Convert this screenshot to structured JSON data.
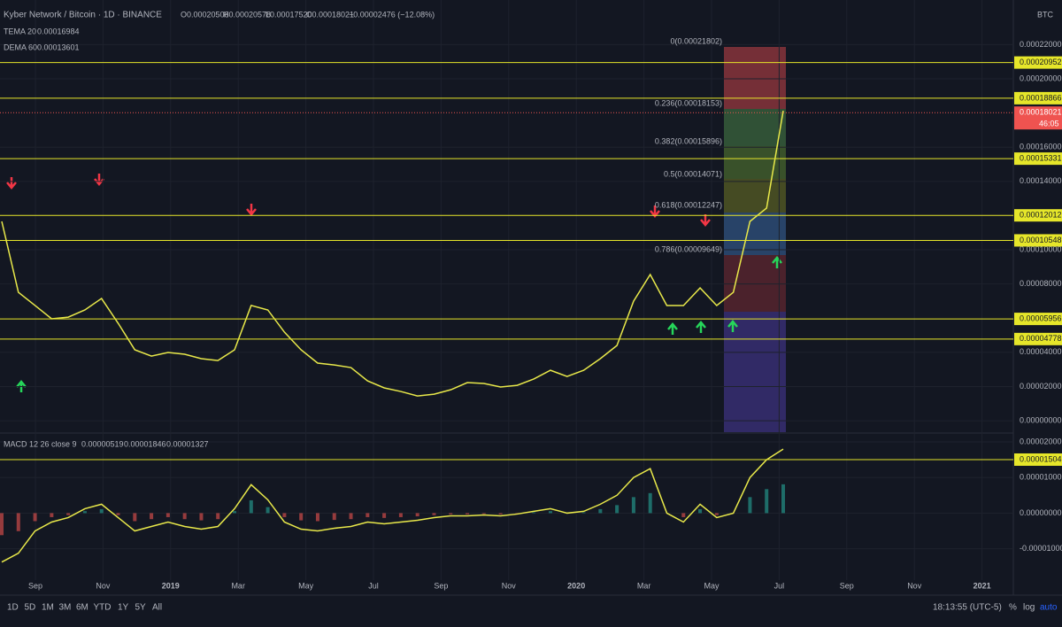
{
  "header": {
    "symbol": "Kyber Network / Bitcoin · 1D · BINANCE",
    "open": "O0.00020508",
    "high": "H0.00020578",
    "low": "L0.00017520",
    "close": "C0.00018021",
    "change": "−0.00002476 (−12.08%)",
    "currency": "BTC"
  },
  "indicators": [
    {
      "name": "TEMA 20",
      "value": "0.00016984"
    },
    {
      "name": "DEMA 60",
      "value": "0.00013601"
    }
  ],
  "macd_legend": {
    "name": "MACD 12 26 close 9",
    "values": [
      "0.00000519",
      "0.00001846",
      "0.00001327"
    ]
  },
  "fib_labels": [
    "0(0.00021802)",
    "0.236(0.00018153)",
    "0.382(0.00015896)",
    "0.5(0.00014071)",
    "0.618(0.00012247)",
    "0.786(0.00009649)"
  ],
  "chart_data": [
    {
      "type": "line",
      "ylim": [
        -6.7e-06,
        0.0002461
      ],
      "yticks": [
        {
          "value": 0.00022,
          "label": "0.00022000"
        },
        {
          "value": 0.0002,
          "label": "0.00020000"
        },
        {
          "value": 0.00016,
          "label": "0.00016000"
        },
        {
          "value": 0.00014,
          "label": "0.00014000"
        },
        {
          "value": 0.0001,
          "label": "0.00010000"
        },
        {
          "value": 8e-05,
          "label": "0.00008000"
        },
        {
          "value": 4e-05,
          "label": "0.00004000"
        },
        {
          "value": 2e-05,
          "label": "0.00002000"
        },
        {
          "value": 0,
          "label": "0.00000000"
        }
      ],
      "levels": [
        0.00020952,
        0.00018866,
        0.00015331,
        0.00012012,
        0.00010548,
        5.956e-05,
        4.778e-05
      ],
      "last_price": 0.00018021,
      "countdown": "46:05",
      "series": [
        {
          "color": "#e8e84a",
          "values": [
            0.0001166,
            7.51e-05,
            6.74e-05,
            5.96e-05,
            6.06e-05,
            6.48e-05,
            7.15e-05,
            5.7e-05,
            4.15e-05,
            3.78e-05,
            3.99e-05,
            3.89e-05,
            3.63e-05,
            3.52e-05,
            4.15e-05,
            6.74e-05,
            6.48e-05,
            5.18e-05,
            4.15e-05,
            3.37e-05,
            3.26e-05,
            3.11e-05,
            2.33e-05,
            1.92e-05,
            1.71e-05,
            1.45e-05,
            1.55e-05,
            1.81e-05,
            2.23e-05,
            2.18e-05,
            1.97e-05,
            2.07e-05,
            2.44e-05,
            2.95e-05,
            2.59e-05,
            2.95e-05,
            3.63e-05,
            4.4e-05,
            6.99e-05,
            8.55e-05,
            6.74e-05,
            6.74e-05,
            7.77e-05,
            6.74e-05,
            7.51e-05,
            0.0001166,
            0.0001244,
            0.0001813
          ]
        }
      ]
    },
    {
      "type": "line",
      "ylim": [
        -1.88e-05,
        2.2e-05
      ],
      "yticks": [
        {
          "value": 2e-05,
          "label": "0.00002000"
        },
        {
          "value": 1e-05,
          "label": "0.00001000"
        },
        {
          "value": 0,
          "label": "0.00000000"
        },
        {
          "value": -1e-05,
          "label": "-0.00001000"
        }
      ],
      "levels": [
        1.504e-05
      ],
      "series": [
        {
          "color": "#e8e84a",
          "values": [
            -1.375e-05,
            -1.125e-05,
            -5e-06,
            -2.5e-06,
            -1.25e-06,
            1.25e-06,
            2.5e-06,
            -1.25e-06,
            -5e-06,
            -3.75e-06,
            -2.5e-06,
            -3.75e-06,
            -4.5e-06,
            -3.75e-06,
            1.25e-06,
            8e-06,
            3.75e-06,
            -2.5e-06,
            -4.5e-06,
            -5e-06,
            -4.25e-06,
            -3.75e-06,
            -2.5e-06,
            -3e-06,
            -2.5e-06,
            -2e-06,
            -1.25e-06,
            -7.5e-07,
            -7.5e-07,
            -5e-07,
            -7.5e-07,
            -2.5e-07,
            5e-07,
            1.25e-06,
            0,
            5e-07,
            2.5e-06,
            5e-06,
            1e-05,
            1.25e-05,
            0,
            -2.5e-06,
            2.5e-06,
            -1.25e-06,
            0,
            1e-05,
            1.5e-05,
            1.8e-05
          ]
        }
      ]
    }
  ],
  "time_axis": [
    "Sep",
    "Nov",
    "2019",
    "Mar",
    "May",
    "Jul",
    "Sep",
    "Nov",
    "2020",
    "Mar",
    "May",
    "Jul",
    "Sep",
    "Nov",
    "2021"
  ],
  "toolbar": {
    "ranges": [
      "1D",
      "5D",
      "1M",
      "3M",
      "6M",
      "YTD",
      "1Y",
      "5Y",
      "All"
    ],
    "clock": "18:13:55 (UTC-5)",
    "percent": "%",
    "log": "log",
    "auto": "auto"
  }
}
